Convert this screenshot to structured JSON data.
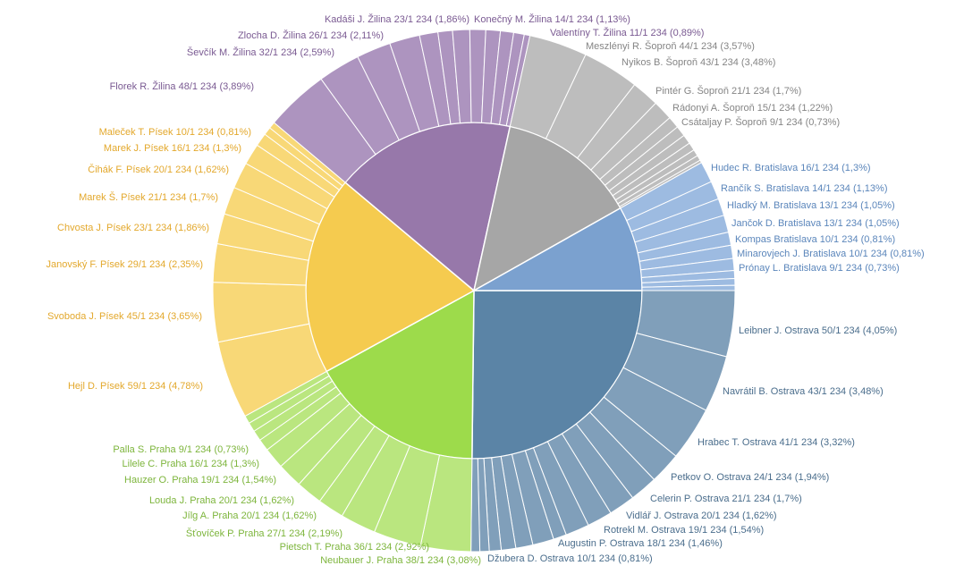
{
  "chart_data": {
    "type": "sunburst",
    "groups": [
      {
        "inner_color": "#5b84a6",
        "outer_color": "#809fba",
        "label_color": "#4a6d8c",
        "labels": [
          "Leibner J. Ostrava 50/1 234 (4,05%)",
          "Navrátil B. Ostrava 43/1 234 (3,48%)",
          "Hrabec T. Ostrava 41/1 234 (3,32%)",
          "Petkov O. Ostrava 24/1 234 (1,94%)",
          "Celerin P. Ostrava 21/1 234 (1,7%)",
          "Vidlář J. Ostrava 20/1 234 (1,62%)",
          "Rotrekl M. Ostrava 19/1 234 (1,54%)",
          "Augustin P. Ostrava 18/1 234 (1,46%)",
          "Džubera D. Ostrava 10/1 234 (0,81%)",
          null,
          null,
          null,
          null,
          null,
          null
        ],
        "values": [
          4.05,
          3.48,
          3.32,
          1.94,
          1.7,
          1.62,
          1.54,
          1.46,
          0.81,
          1.3,
          1.05,
          0.89,
          0.73,
          0.57,
          0.54
        ]
      },
      {
        "inner_color": "#9ddb4b",
        "outer_color": "#bae67f",
        "label_color": "#7db53c",
        "labels": [
          "Neubauer J. Praha 38/1 234 (3,08%)",
          "Pietsch T. Praha 36/1 234 (2,92%)",
          "Šťovíček P. Praha 27/1 234 (2,19%)",
          "Jílg A. Praha 20/1 234 (1,62%)",
          "Louda J. Praha 20/1 234 (1,62%)",
          "Hauzer O. Praha 19/1 234 (1,54%)",
          "Lilele C. Praha 16/1 234 (1,3%)",
          "Palla S. Praha 9/1 234 (0,73%)",
          null,
          null,
          null
        ],
        "values": [
          3.08,
          2.92,
          2.19,
          1.62,
          1.62,
          1.54,
          1.3,
          0.73,
          0.65,
          0.57,
          0.49
        ]
      },
      {
        "inner_color": "#f5cb4f",
        "outer_color": "#f8d877",
        "label_color": "#e3a82c",
        "labels": [
          "Hejl D. Písek 59/1 234 (4,78%)",
          "Svoboda J. Písek 45/1 234 (3,65%)",
          "Janovský F. Písek 29/1 234 (2,35%)",
          "Chvosta J. Písek 23/1 234 (1,86%)",
          "Marek Š. Písek 21/1 234 (1,7%)",
          "Čihák F. Písek 20/1 234 (1,62%)",
          "Marek J. Písek 16/1 234 (1,3%)",
          "Maleček T. Písek 10/1 234 (0,81%)",
          null,
          null
        ],
        "values": [
          4.78,
          3.65,
          2.35,
          1.86,
          1.7,
          1.62,
          1.3,
          0.81,
          0.49,
          0.41
        ]
      },
      {
        "inner_color": "#9778aa",
        "outer_color": "#ad94bf",
        "label_color": "#7a5a92",
        "labels": [
          "Florek R. Žilina 48/1 234 (3,89%)",
          "Ševčík M. Žilina 32/1 234 (2,59%)",
          "Zlocha D. Žilina 26/1 234 (2,11%)",
          "Kadáši J. Žilina 23/1 234 (1,86%)",
          "Konečný M. Žilina 14/1 234 (1,13%)",
          "Valentíny T. Žilina 11/1 234 (0,89%)",
          null,
          null,
          null,
          null,
          null,
          null
        ],
        "values": [
          3.89,
          2.59,
          2.11,
          1.86,
          1.13,
          0.89,
          1.05,
          0.97,
          0.89,
          0.81,
          0.65,
          0.35
        ]
      },
      {
        "inner_color": "#a6a6a6",
        "outer_color": "#bdbdbd",
        "label_color": "#858585",
        "labels": [
          "Meszlényi R. Šoproň 44/1 234 (3,57%)",
          "Nyikos B. Šoproň 43/1 234 (3,48%)",
          "Pintér G. Šoproň 21/1 234 (1,7%)",
          "Rádonyi A. Šoproň 15/1 234 (1,22%)",
          "Csátaljay P. Šoproň 9/1 234 (0,73%)",
          null,
          null,
          null,
          null,
          null,
          null
        ],
        "values": [
          3.57,
          3.48,
          1.7,
          1.22,
          0.73,
          0.65,
          0.57,
          0.49,
          0.41,
          0.32,
          0.16
        ]
      },
      {
        "inner_color": "#7ba1cf",
        "outer_color": "#9dbbe1",
        "label_color": "#5b86bb",
        "labels": [
          "Hudec R. Bratislava 16/1 234 (1,3%)",
          "Rančík S. Bratislava 14/1 234 (1,13%)",
          "Hladký M. Bratislava 13/1 234 (1,05%)",
          "Jančok D. Bratislava 13/1 234 (1,05%)",
          "Kompas Bratislava 10/1 234 (0,81%)",
          "Minarovjech J. Bratislava 10/1 234 (0,81%)",
          "Prónay L. Bratislava 9/1 234 (0,73%)",
          null,
          null,
          null
        ],
        "values": [
          1.3,
          1.13,
          1.05,
          1.05,
          0.81,
          0.81,
          0.73,
          0.49,
          0.41,
          0.32
        ]
      }
    ]
  }
}
